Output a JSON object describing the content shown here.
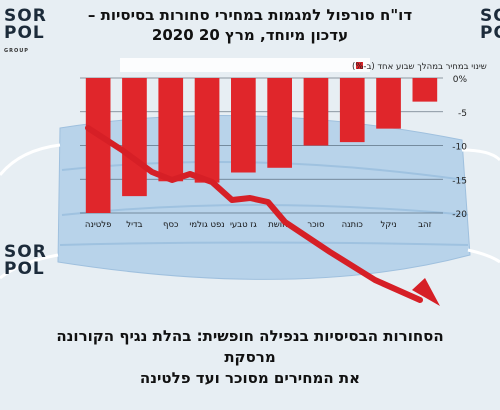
{
  "header": {
    "line1": "דו\"ח סורפול למגמות במחירי סחורות בסיסיות –",
    "line2": "עדכון מיוחד, מרץ 20 2020"
  },
  "footer": {
    "line1": "הסחורות הבסיסיות בנפילה חופשית: בהלת נגיף הקורונה מרסקת",
    "line2": "את המחירים מסוכר ועד פלטינה"
  },
  "logo": {
    "word1": "SOR",
    "word2": "POL",
    "group": "GROUP"
  },
  "colors": {
    "bar": "#e0262b",
    "arrow": "#d61f26",
    "mask": "#b8d3ea",
    "background": "#e7eef3"
  },
  "chart_data": {
    "type": "bar",
    "title": "",
    "legend": {
      "label": "שינוי במחיר במהלך שבוע אחד (ב-%)",
      "placement": "top"
    },
    "categories": [
      "זהב",
      "ניקל",
      "כותנה",
      "סוכר",
      "נחושת",
      "גז טבעי",
      "נפט גולמי",
      "כסף",
      "בדיל",
      "פלטינה"
    ],
    "values": [
      -3.5,
      -7.5,
      -9.5,
      -10,
      -13.3,
      -14,
      -15.5,
      -15.3,
      -17.5,
      -20
    ],
    "ylim": [
      -20,
      0
    ],
    "yticks": [
      "0%",
      "-5",
      "-10",
      "-15",
      "-20"
    ],
    "ytick_values": [
      0,
      -5,
      -10,
      -15,
      -20
    ],
    "grid": true,
    "y_axis_position": "right"
  }
}
